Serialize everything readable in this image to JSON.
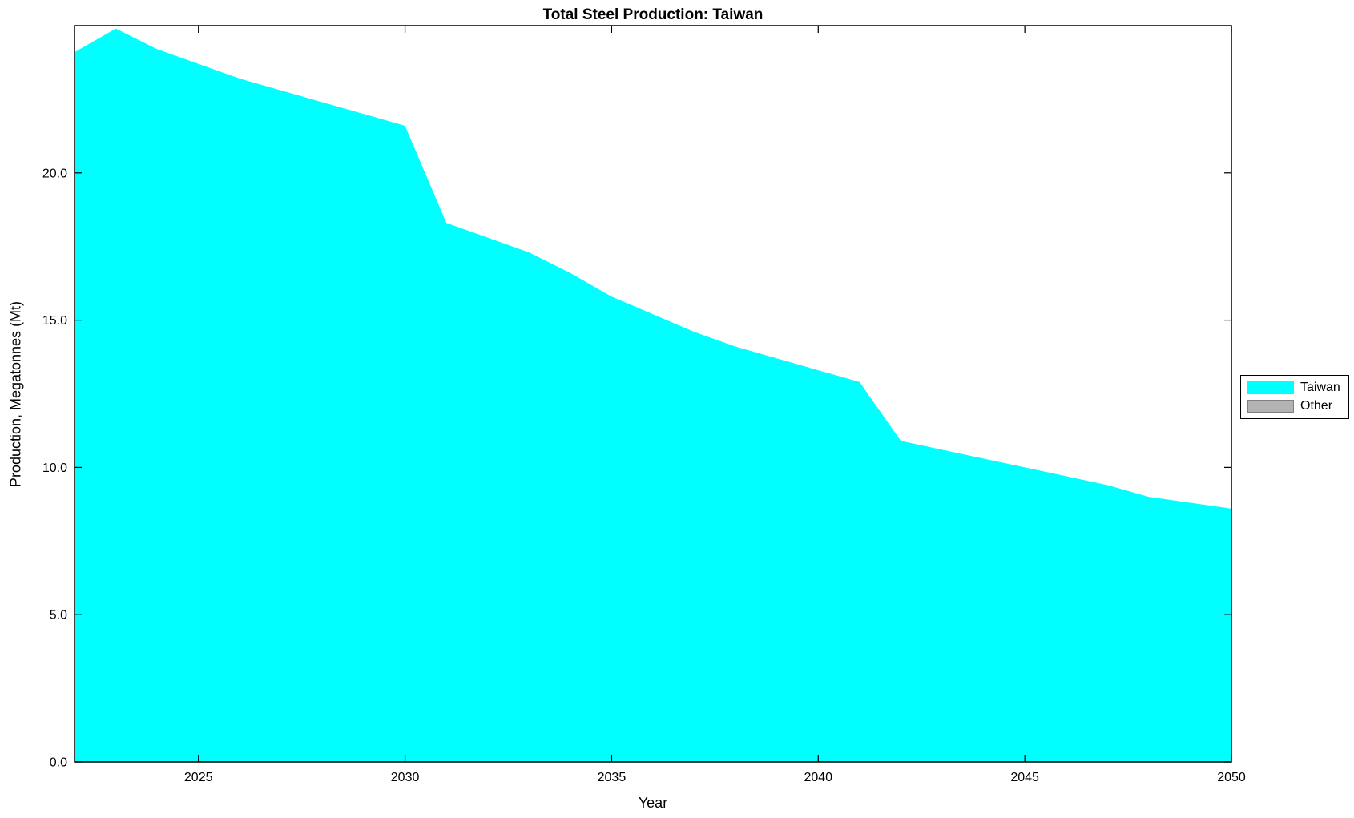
{
  "chart_data": {
    "type": "area",
    "title": "Total Steel Production: Taiwan",
    "xlabel": "Year",
    "ylabel": "Production, Megatonnes (Mt)",
    "x": [
      2022,
      2023,
      2024,
      2025,
      2026,
      2027,
      2028,
      2029,
      2030,
      2031,
      2032,
      2033,
      2034,
      2035,
      2036,
      2037,
      2038,
      2039,
      2040,
      2041,
      2042,
      2043,
      2044,
      2045,
      2046,
      2047,
      2048,
      2049,
      2050
    ],
    "series": [
      {
        "name": "Taiwan",
        "color": "#00FFFF",
        "values": [
          24.1,
          24.9,
          24.2,
          23.7,
          23.2,
          22.8,
          22.4,
          22.0,
          21.6,
          18.3,
          17.8,
          17.3,
          16.6,
          15.8,
          15.2,
          14.6,
          14.1,
          13.7,
          13.3,
          12.9,
          10.9,
          10.6,
          10.3,
          10.0,
          9.7,
          9.4,
          9.0,
          8.8,
          8.6
        ]
      },
      {
        "name": "Other",
        "color": "#B3B3B3",
        "values": [
          0,
          0,
          0,
          0,
          0,
          0,
          0,
          0,
          0,
          0,
          0,
          0,
          0,
          0,
          0,
          0,
          0,
          0,
          0,
          0,
          0,
          0,
          0,
          0,
          0,
          0,
          0,
          0,
          0
        ]
      }
    ],
    "xlim": [
      2022,
      2050
    ],
    "ylim": [
      0,
      25
    ],
    "xtick_values": [
      2025,
      2030,
      2035,
      2040,
      2045,
      2050
    ],
    "xtick_labels": [
      "2025",
      "2030",
      "2035",
      "2040",
      "2045",
      "2050"
    ],
    "ytick_values": [
      0,
      5,
      10,
      15,
      20
    ],
    "ytick_labels": [
      "0.0",
      "5.0",
      "10.0",
      "15.0",
      "20.0"
    ],
    "grid": false,
    "legend_position": "right-outside"
  },
  "legend": {
    "items": [
      {
        "label": "Taiwan",
        "color": "#00FFFF",
        "border": "none"
      },
      {
        "label": "Other",
        "color": "#B3B3B3",
        "border": "#808080"
      }
    ]
  }
}
